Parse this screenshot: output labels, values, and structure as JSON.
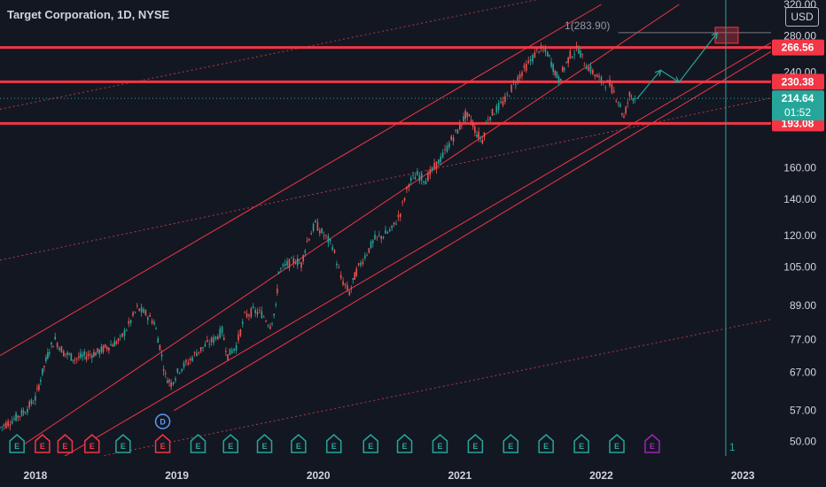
{
  "header": {
    "title": "Target Corporation, 1D, NYSE",
    "currency": "USD"
  },
  "chart_data": {
    "type": "candlestick",
    "y_scale": "log",
    "ylim": [
      47,
      320
    ],
    "y_ticks": [
      "320.00",
      "280.00",
      "240.00",
      "160.00",
      "140.00",
      "120.00",
      "105.00",
      "89.00",
      "77.00",
      "67.00",
      "57.00",
      "50.00"
    ],
    "y_tick_values": [
      320,
      280,
      240,
      160,
      140,
      120,
      105,
      89,
      77,
      67,
      57,
      50
    ],
    "x_ticks": [
      "2018",
      "2019",
      "2020",
      "2021",
      "2022",
      "2023"
    ],
    "x_tick_values": [
      2018.0,
      2019.0,
      2020.0,
      2021.0,
      2022.0,
      2023.0
    ],
    "xlim": [
      2017.75,
      2023.2
    ],
    "price_series": [
      [
        2017.75,
        53
      ],
      [
        2017.85,
        55
      ],
      [
        2017.93,
        57
      ],
      [
        2018.0,
        60
      ],
      [
        2018.05,
        67
      ],
      [
        2018.1,
        74
      ],
      [
        2018.14,
        77
      ],
      [
        2018.2,
        73
      ],
      [
        2018.28,
        71
      ],
      [
        2018.36,
        72
      ],
      [
        2018.44,
        73
      ],
      [
        2018.52,
        75
      ],
      [
        2018.6,
        77
      ],
      [
        2018.66,
        82
      ],
      [
        2018.72,
        88
      ],
      [
        2018.78,
        86
      ],
      [
        2018.84,
        83
      ],
      [
        2018.88,
        75
      ],
      [
        2018.92,
        66
      ],
      [
        2018.96,
        64
      ],
      [
        2019.02,
        68
      ],
      [
        2019.08,
        70
      ],
      [
        2019.14,
        73
      ],
      [
        2019.2,
        75
      ],
      [
        2019.26,
        77
      ],
      [
        2019.32,
        80
      ],
      [
        2019.36,
        72
      ],
      [
        2019.42,
        75
      ],
      [
        2019.48,
        85
      ],
      [
        2019.54,
        87
      ],
      [
        2019.6,
        86
      ],
      [
        2019.66,
        82
      ],
      [
        2019.7,
        88
      ],
      [
        2019.72,
        103
      ],
      [
        2019.78,
        106
      ],
      [
        2019.84,
        108
      ],
      [
        2019.88,
        106
      ],
      [
        2019.92,
        117
      ],
      [
        2019.98,
        126
      ],
      [
        2020.04,
        120
      ],
      [
        2020.1,
        115
      ],
      [
        2020.16,
        100
      ],
      [
        2020.22,
        94
      ],
      [
        2020.27,
        103
      ],
      [
        2020.33,
        110
      ],
      [
        2020.4,
        118
      ],
      [
        2020.46,
        120
      ],
      [
        2020.52,
        123
      ],
      [
        2020.58,
        132
      ],
      [
        2020.64,
        150
      ],
      [
        2020.7,
        155
      ],
      [
        2020.76,
        152
      ],
      [
        2020.82,
        160
      ],
      [
        2020.88,
        168
      ],
      [
        2020.94,
        180
      ],
      [
        2021.0,
        190
      ],
      [
        2021.04,
        200
      ],
      [
        2021.08,
        196
      ],
      [
        2021.12,
        185
      ],
      [
        2021.16,
        180
      ],
      [
        2021.2,
        198
      ],
      [
        2021.26,
        205
      ],
      [
        2021.32,
        213
      ],
      [
        2021.38,
        228
      ],
      [
        2021.44,
        240
      ],
      [
        2021.5,
        252
      ],
      [
        2021.56,
        265
      ],
      [
        2021.62,
        260
      ],
      [
        2021.66,
        245
      ],
      [
        2021.7,
        232
      ],
      [
        2021.74,
        245
      ],
      [
        2021.78,
        258
      ],
      [
        2021.84,
        265
      ],
      [
        2021.88,
        250
      ],
      [
        2021.94,
        240
      ],
      [
        2022.0,
        231
      ],
      [
        2022.06,
        228
      ],
      [
        2022.12,
        213
      ],
      [
        2022.16,
        198
      ],
      [
        2022.2,
        218
      ],
      [
        2022.25,
        214
      ]
    ],
    "projection_path": [
      [
        2022.25,
        214
      ],
      [
        2022.42,
        242
      ],
      [
        2022.55,
        230
      ],
      [
        2022.82,
        283.9
      ]
    ],
    "horizontal_levels": [
      {
        "label": "266.56",
        "value": 266.56,
        "color": "#f23645"
      },
      {
        "label": "230.38",
        "value": 230.38,
        "color": "#f23645"
      },
      {
        "label": "193.08",
        "value": 193.08,
        "color": "#f23645"
      }
    ],
    "target_label": "1(283.90)",
    "target_value": 283.9,
    "vertical_marker": {
      "x": 2022.88,
      "label": "1"
    },
    "current_price": {
      "label": "214.64",
      "countdown": "01:52",
      "value": 214.64,
      "color": "#26a69a"
    },
    "events": [
      {
        "x": 2017.87,
        "type": "E",
        "color": "#26a69a"
      },
      {
        "x": 2018.05,
        "type": "E",
        "color": "#f23645"
      },
      {
        "x": 2018.21,
        "type": "E",
        "color": "#f23645"
      },
      {
        "x": 2018.4,
        "type": "E",
        "color": "#f23645"
      },
      {
        "x": 2018.62,
        "type": "E",
        "color": "#26a69a"
      },
      {
        "x": 2018.9,
        "type": "E",
        "color": "#f23645"
      },
      {
        "x": 2018.9,
        "type": "D",
        "color": "#5b9cf6",
        "row": 2
      },
      {
        "x": 2019.15,
        "type": "E",
        "color": "#26a69a"
      },
      {
        "x": 2019.38,
        "type": "E",
        "color": "#26a69a"
      },
      {
        "x": 2019.62,
        "type": "E",
        "color": "#26a69a"
      },
      {
        "x": 2019.86,
        "type": "E",
        "color": "#26a69a"
      },
      {
        "x": 2020.11,
        "type": "E",
        "color": "#26a69a"
      },
      {
        "x": 2020.37,
        "type": "E",
        "color": "#26a69a"
      },
      {
        "x": 2020.61,
        "type": "E",
        "color": "#26a69a"
      },
      {
        "x": 2020.86,
        "type": "E",
        "color": "#26a69a"
      },
      {
        "x": 2021.11,
        "type": "E",
        "color": "#26a69a"
      },
      {
        "x": 2021.36,
        "type": "E",
        "color": "#26a69a"
      },
      {
        "x": 2021.61,
        "type": "E",
        "color": "#26a69a"
      },
      {
        "x": 2021.86,
        "type": "E",
        "color": "#26a69a"
      },
      {
        "x": 2022.11,
        "type": "E",
        "color": "#26a69a"
      },
      {
        "x": 2022.36,
        "type": "E",
        "color": "#9c27b0"
      }
    ],
    "trend_lines": [
      {
        "from": [
          2017.75,
          72
        ],
        "to": [
          2022.0,
          320
        ],
        "color": "#f23645",
        "width": 1
      },
      {
        "from": [
          2017.85,
          48
        ],
        "to": [
          2022.55,
          320
        ],
        "color": "#f23645",
        "width": 1
      },
      {
        "from": [
          2018.98,
          57
        ],
        "to": [
          2023.2,
          262
        ],
        "color": "#f23645",
        "width": 1
      },
      {
        "from": [
          2017.75,
          40
        ],
        "to": [
          2023.2,
          272
        ],
        "color": "#f23645",
        "width": 1
      },
      {
        "from": [
          2017.75,
          108
        ],
        "to": [
          2023.2,
          215
        ],
        "color": "#b23a48",
        "width": 1,
        "dash": "2,3"
      },
      {
        "from": [
          2017.75,
          205
        ],
        "to": [
          2023.2,
          400
        ],
        "color": "#b23a48",
        "width": 1,
        "dash": "2,3"
      },
      {
        "from": [
          2017.75,
          43
        ],
        "to": [
          2023.2,
          84
        ],
        "color": "#b23a48",
        "width": 1,
        "dash": "2,3"
      }
    ]
  }
}
